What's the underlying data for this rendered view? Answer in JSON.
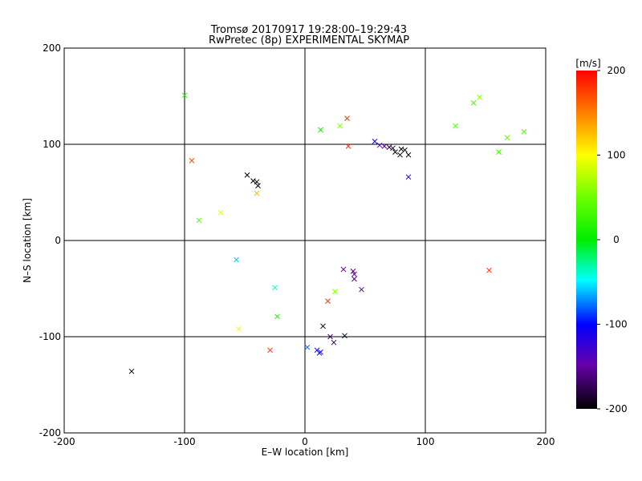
{
  "chart_data": {
    "type": "scatter",
    "title": "Tromsø 20170917 19:28:00–19:29:43",
    "subtitle": "RwPretec (8p) EXPERIMENTAL SKYMAP",
    "xlabel": "E–W location [km]",
    "ylabel": "N–S location [km]",
    "xlim": [
      -200,
      200
    ],
    "ylim": [
      -200,
      200
    ],
    "x_ticks": [
      -200,
      -100,
      0,
      100,
      200
    ],
    "y_ticks": [
      -200,
      -100,
      0,
      100,
      200
    ],
    "grid": true,
    "colorbar": {
      "label": "[m/s]",
      "range": [
        -200,
        200
      ],
      "ticks": [
        200,
        100,
        0,
        -100,
        -200
      ]
    },
    "markers": {
      "x": [
        {
          "x": -100,
          "y": 151,
          "v": 20
        },
        {
          "x": -94,
          "y": 83,
          "v": 170
        },
        {
          "x": -88,
          "y": 21,
          "v": 40
        },
        {
          "x": -70,
          "y": 29,
          "v": 90
        },
        {
          "x": -57,
          "y": -20,
          "v": -60
        },
        {
          "x": -55,
          "y": -92,
          "v": 100
        },
        {
          "x": -48,
          "y": 68,
          "v": -200
        },
        {
          "x": -43,
          "y": 62,
          "v": -200
        },
        {
          "x": -40,
          "y": 61,
          "v": -200
        },
        {
          "x": -39,
          "y": 57,
          "v": -200
        },
        {
          "x": -40,
          "y": 49,
          "v": 130
        },
        {
          "x": -29,
          "y": -114,
          "v": 180
        },
        {
          "x": -23,
          "y": -79,
          "v": 10
        },
        {
          "x": -25,
          "y": -49,
          "v": -40
        },
        {
          "x": 2,
          "y": -111,
          "v": -80
        },
        {
          "x": 10,
          "y": -114,
          "v": -100
        },
        {
          "x": 12,
          "y": -117,
          "v": -90
        },
        {
          "x": 13,
          "y": -116,
          "v": -120
        },
        {
          "x": 13,
          "y": 115,
          "v": 10
        },
        {
          "x": 15,
          "y": -89,
          "v": -200
        },
        {
          "x": 19,
          "y": -63,
          "v": 180
        },
        {
          "x": 21,
          "y": -100,
          "v": -170
        },
        {
          "x": 24,
          "y": -106,
          "v": -180
        },
        {
          "x": 25,
          "y": -53,
          "v": 60
        },
        {
          "x": 32,
          "y": -30,
          "v": -150
        },
        {
          "x": 29,
          "y": 119,
          "v": 60
        },
        {
          "x": 35,
          "y": 127,
          "v": 180
        },
        {
          "x": 33,
          "y": -99,
          "v": -200
        },
        {
          "x": 36,
          "y": 98,
          "v": 180
        },
        {
          "x": 40,
          "y": -32,
          "v": -160
        },
        {
          "x": 41,
          "y": -40,
          "v": -160
        },
        {
          "x": 41,
          "y": -35,
          "v": -150
        },
        {
          "x": 47,
          "y": -51,
          "v": -140
        },
        {
          "x": 58,
          "y": 103,
          "v": -110
        },
        {
          "x": 62,
          "y": 99,
          "v": -140
        },
        {
          "x": 66,
          "y": 98,
          "v": -160
        },
        {
          "x": 70,
          "y": 97,
          "v": -180
        },
        {
          "x": 73,
          "y": 96,
          "v": -190
        },
        {
          "x": 75,
          "y": 92,
          "v": -200
        },
        {
          "x": 79,
          "y": 89,
          "v": -200
        },
        {
          "x": 83,
          "y": 94,
          "v": -200
        },
        {
          "x": 86,
          "y": 89,
          "v": -200
        },
        {
          "x": 80,
          "y": 95,
          "v": -200
        },
        {
          "x": 86,
          "y": 66,
          "v": -120
        },
        {
          "x": 125,
          "y": 119,
          "v": 40
        },
        {
          "x": 140,
          "y": 143,
          "v": 40
        },
        {
          "x": 145,
          "y": 149,
          "v": 60
        },
        {
          "x": 153,
          "y": -31,
          "v": 180
        },
        {
          "x": 161,
          "y": 92,
          "v": 30
        },
        {
          "x": 168,
          "y": 107,
          "v": 50
        },
        {
          "x": 182,
          "y": 113,
          "v": 40
        },
        {
          "x": -144,
          "y": -136,
          "v": -200
        }
      ]
    }
  }
}
